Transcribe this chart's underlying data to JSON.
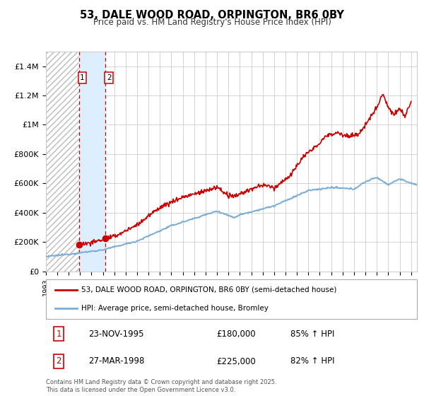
{
  "title": "53, DALE WOOD ROAD, ORPINGTON, BR6 0BY",
  "subtitle": "Price paid vs. HM Land Registry's House Price Index (HPI)",
  "ylabel_ticks": [
    "£0",
    "£200K",
    "£400K",
    "£600K",
    "£800K",
    "£1M",
    "£1.2M",
    "£1.4M"
  ],
  "ytick_values": [
    0,
    200000,
    400000,
    600000,
    800000,
    1000000,
    1200000,
    1400000
  ],
  "ylim": [
    0,
    1500000
  ],
  "xlim_start": 1993.0,
  "xlim_end": 2025.5,
  "sale1_date": 1995.9,
  "sale1_price": 180000,
  "sale2_date": 1998.23,
  "sale2_price": 225000,
  "sale1_label": "1",
  "sale2_label": "2",
  "red_color": "#cc0000",
  "blue_color": "#7aadd4",
  "legend_line1": "53, DALE WOOD ROAD, ORPINGTON, BR6 0BY (semi-detached house)",
  "legend_line2": "HPI: Average price, semi-detached house, Bromley",
  "table_row1_num": "1",
  "table_row1_date": "23-NOV-1995",
  "table_row1_price": "£180,000",
  "table_row1_hpi": "85% ↑ HPI",
  "table_row2_num": "2",
  "table_row2_date": "27-MAR-1998",
  "table_row2_price": "£225,000",
  "table_row2_hpi": "82% ↑ HPI",
  "footer": "Contains HM Land Registry data © Crown copyright and database right 2025.\nThis data is licensed under the Open Government Licence v3.0.",
  "shade_color": "#ddeeff",
  "bg_color": "#ffffff"
}
